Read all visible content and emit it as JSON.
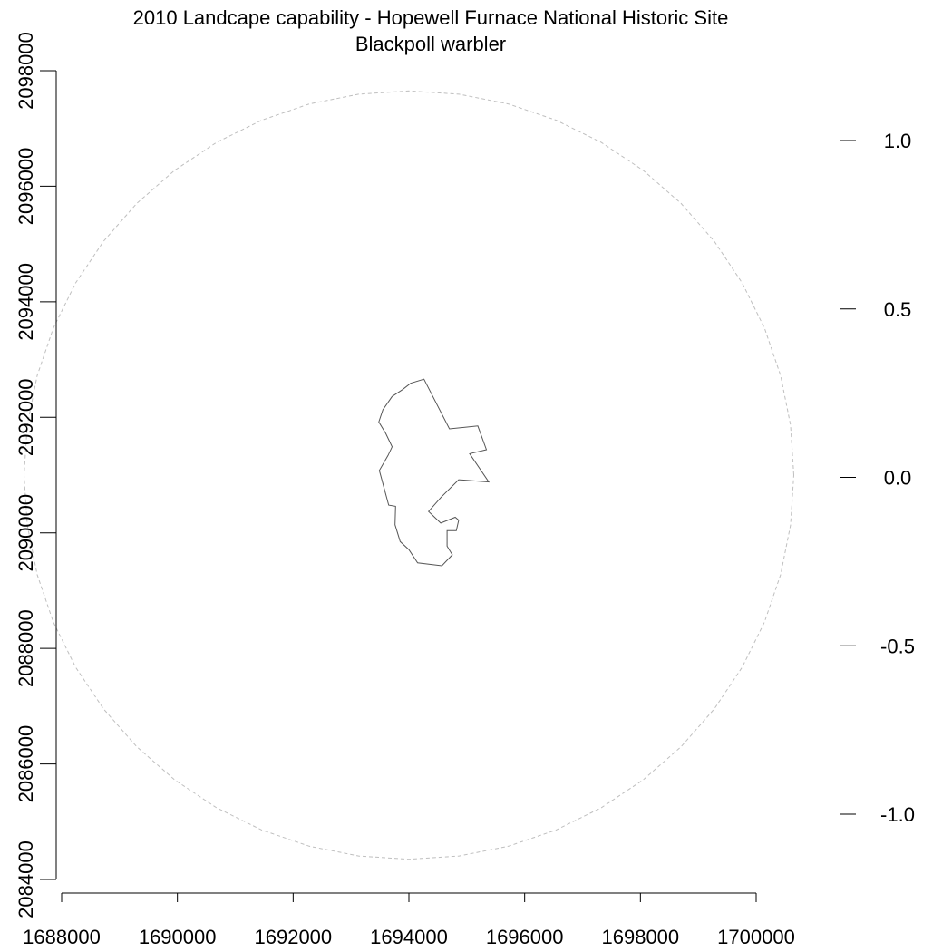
{
  "title": "2010 Landcape capability - Hopewell Furnace National Historic Site",
  "subtitle": "Blackpoll warbler",
  "map": {
    "x_axis_ticks": [
      "1688000",
      "1690000",
      "1692000",
      "1694000",
      "1696000",
      "1698000",
      "1700000"
    ],
    "y_axis_ticks": [
      "2084000",
      "2086000",
      "2088000",
      "2090000",
      "2092000",
      "2094000",
      "2096000",
      "2098000"
    ],
    "legend_ticks": [
      "1.0",
      "0.5",
      "0.0",
      "-0.5",
      "-1.0"
    ],
    "x_range": [
      1688000,
      1700000
    ],
    "y_range": [
      2084000,
      2098000
    ],
    "legend_range": [
      -1.0,
      1.0
    ],
    "buffer_circle": {
      "center": [
        1694000,
        2091000
      ],
      "radius": 6650,
      "line_style": "dashed",
      "color": "#bfbfbf"
    },
    "park_boundary": {
      "line_style": "solid",
      "color": "#555555",
      "points": [
        [
          1694260,
          2092660
        ],
        [
          1694700,
          2091800
        ],
        [
          1695190,
          2091850
        ],
        [
          1695340,
          2091440
        ],
        [
          1695050,
          2091370
        ],
        [
          1695380,
          2090880
        ],
        [
          1694860,
          2090920
        ],
        [
          1694560,
          2090620
        ],
        [
          1694340,
          2090370
        ],
        [
          1694550,
          2090170
        ],
        [
          1694800,
          2090270
        ],
        [
          1694860,
          2090220
        ],
        [
          1694820,
          2090040
        ],
        [
          1694660,
          2090040
        ],
        [
          1694660,
          2089770
        ],
        [
          1694750,
          2089620
        ],
        [
          1694570,
          2089430
        ],
        [
          1694150,
          2089480
        ],
        [
          1694000,
          2089710
        ],
        [
          1693850,
          2089850
        ],
        [
          1693760,
          2090140
        ],
        [
          1693770,
          2090460
        ],
        [
          1693650,
          2090480
        ],
        [
          1693490,
          2091080
        ],
        [
          1693640,
          2091340
        ],
        [
          1693710,
          2091490
        ],
        [
          1693600,
          2091720
        ],
        [
          1693480,
          2091920
        ],
        [
          1693550,
          2092130
        ],
        [
          1693710,
          2092360
        ],
        [
          1693890,
          2092480
        ],
        [
          1694030,
          2092590
        ],
        [
          1694260,
          2092660
        ]
      ]
    }
  }
}
